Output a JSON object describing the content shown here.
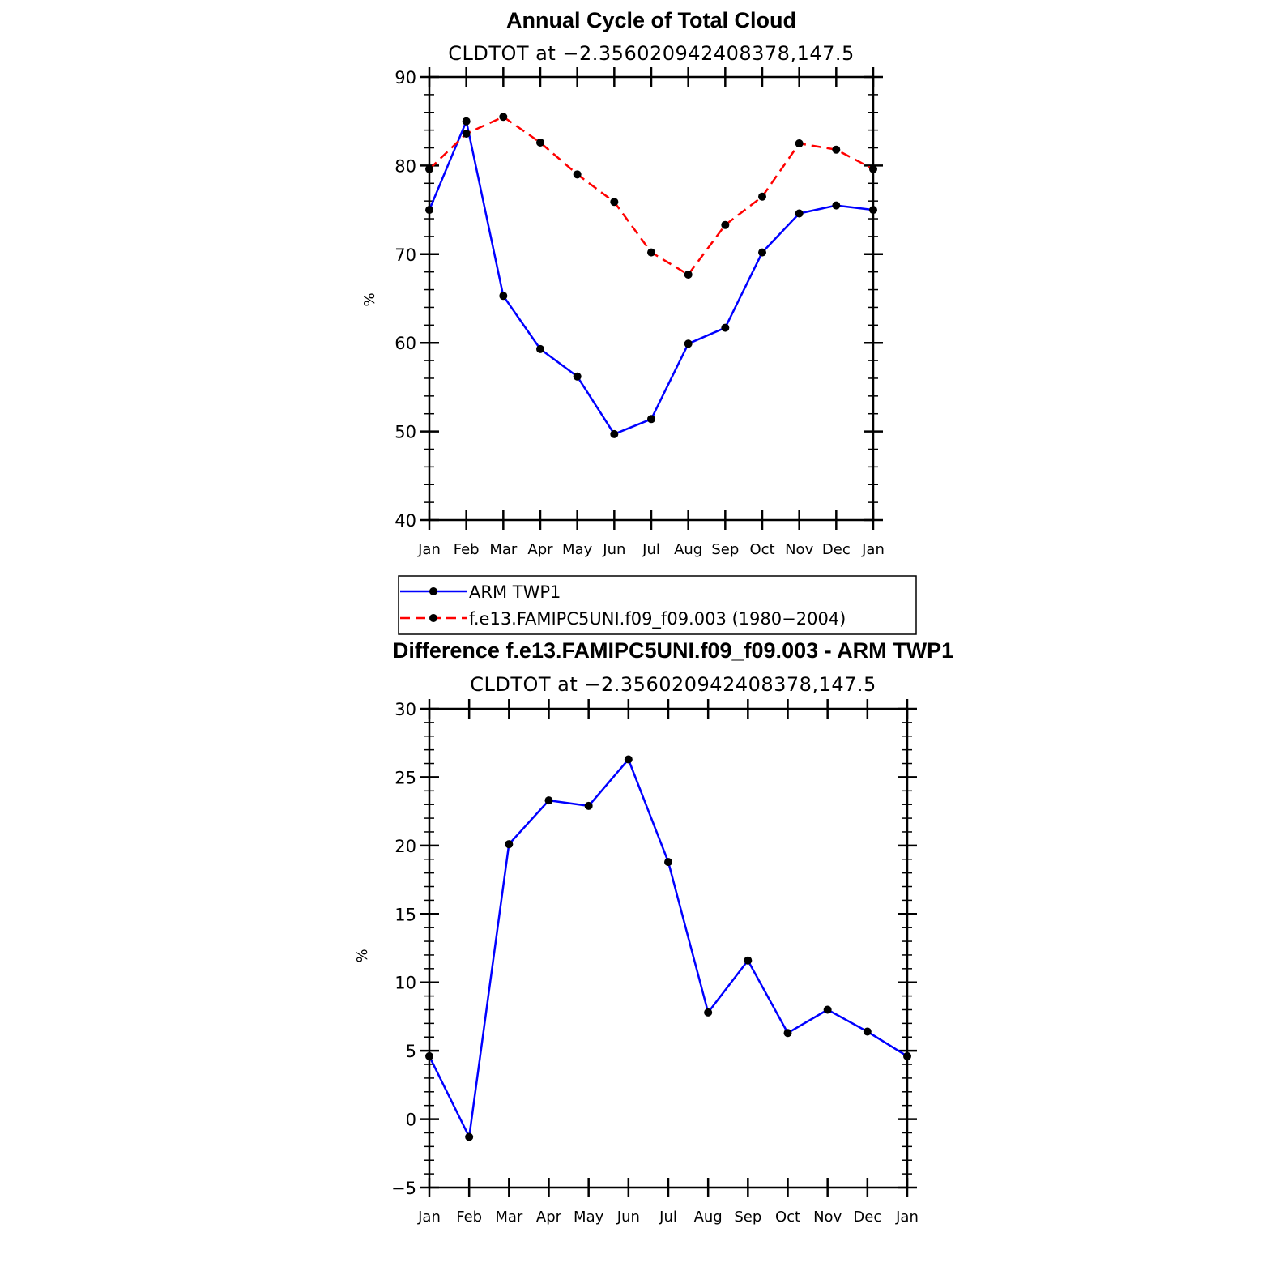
{
  "chart_data": [
    {
      "type": "line",
      "title": "Annual Cycle of Total Cloud",
      "subtitle": "CLDTOT at −2.356020942408378,147.5",
      "xlabel": "",
      "ylabel": "%",
      "categories": [
        "Jan",
        "Feb",
        "Mar",
        "Apr",
        "May",
        "Jun",
        "Jul",
        "Aug",
        "Sep",
        "Oct",
        "Nov",
        "Dec",
        "Jan"
      ],
      "ylim": [
        40,
        90
      ],
      "yticks": [
        40,
        50,
        60,
        70,
        80,
        90
      ],
      "series": [
        {
          "name": "ARM TWP1",
          "color": "#0000ff",
          "dash": "solid",
          "values": [
            75.0,
            85.0,
            65.3,
            59.3,
            56.2,
            49.7,
            51.4,
            59.9,
            61.7,
            70.2,
            74.6,
            75.5,
            75.0
          ]
        },
        {
          "name": "f.e13.FAMIPC5UNI.f09_f09.003 (1980−2004)",
          "color": "#ff0000",
          "dash": "dashed",
          "values": [
            79.6,
            83.6,
            85.5,
            82.6,
            79.0,
            75.9,
            70.2,
            67.7,
            73.3,
            76.5,
            82.5,
            81.8,
            79.6
          ]
        }
      ],
      "legend": "below"
    },
    {
      "type": "line",
      "title": "Difference f.e13.FAMIPC5UNI.f09_f09.003 - ARM TWP1",
      "subtitle": "CLDTOT at −2.356020942408378,147.5",
      "xlabel": "",
      "ylabel": "%",
      "categories": [
        "Jan",
        "Feb",
        "Mar",
        "Apr",
        "May",
        "Jun",
        "Jul",
        "Aug",
        "Sep",
        "Oct",
        "Nov",
        "Dec",
        "Jan"
      ],
      "ylim": [
        -5,
        30
      ],
      "yticks": [
        -5,
        0,
        5,
        10,
        15,
        20,
        25,
        30
      ],
      "series": [
        {
          "name": "Difference",
          "color": "#0000ff",
          "dash": "solid",
          "values": [
            4.6,
            -1.3,
            20.1,
            23.3,
            22.9,
            26.3,
            18.8,
            7.8,
            11.6,
            6.3,
            8.0,
            6.4,
            4.6
          ]
        }
      ]
    }
  ]
}
